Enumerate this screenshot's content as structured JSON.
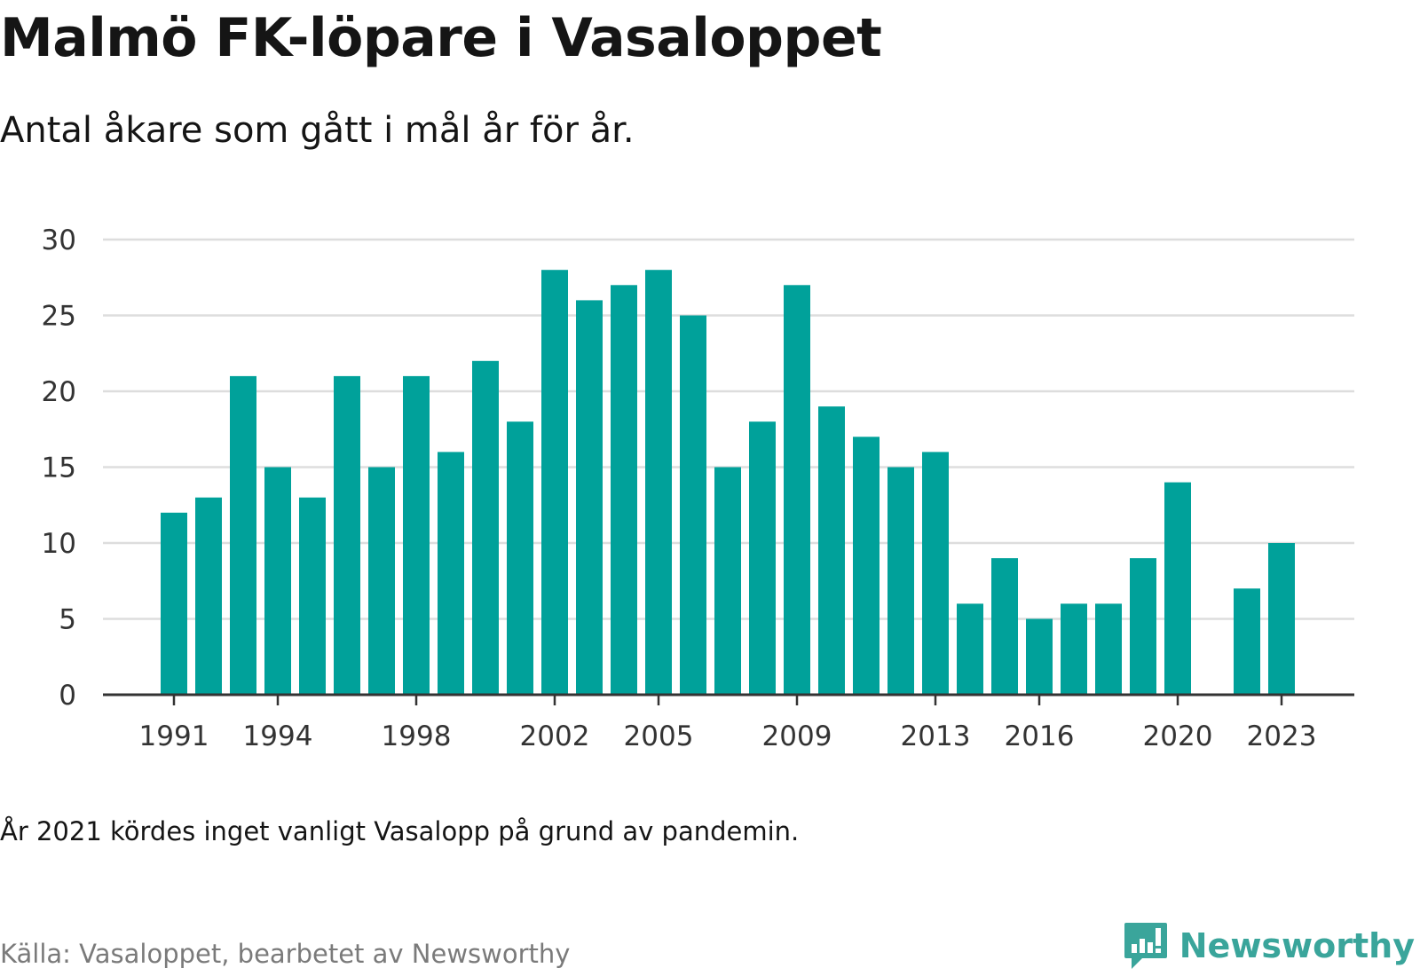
{
  "header": {
    "title": "Malmö FK-löpare i Vasaloppet",
    "subtitle": "Antal åkare som gått i mål år för år."
  },
  "footer": {
    "note": "År 2021 kördes inget vanligt Vasalopp på grund av pandemin.",
    "source": "Källa: Vasaloppet, bearbetet av Newsworthy",
    "brand": "Newsworthy"
  },
  "colors": {
    "bar": "#00a19a",
    "grid": "#dddddd",
    "axis": "#333333",
    "brand": "#3aa59b"
  },
  "chart_data": {
    "type": "bar",
    "title": "Malmö FK-löpare i Vasaloppet",
    "subtitle": "Antal åkare som gått i mål år för år.",
    "xlabel": "",
    "ylabel": "",
    "categories": [
      1991,
      1992,
      1993,
      1994,
      1995,
      1996,
      1997,
      1998,
      1999,
      2000,
      2001,
      2002,
      2003,
      2004,
      2005,
      2006,
      2007,
      2008,
      2009,
      2010,
      2011,
      2012,
      2013,
      2014,
      2015,
      2016,
      2017,
      2018,
      2019,
      2020,
      2021,
      2022,
      2023
    ],
    "values": [
      12,
      13,
      21,
      15,
      13,
      21,
      15,
      21,
      16,
      22,
      18,
      28,
      26,
      27,
      28,
      25,
      15,
      18,
      27,
      19,
      17,
      15,
      16,
      6,
      9,
      5,
      6,
      6,
      9,
      14,
      null,
      7,
      10
    ],
    "x_tick_labels": [
      "1991",
      "1994",
      "1998",
      "2002",
      "2005",
      "2009",
      "2013",
      "2016",
      "2020",
      "2023"
    ],
    "y_ticks": [
      0,
      5,
      10,
      15,
      20,
      25,
      30
    ],
    "ylim": [
      0,
      30
    ],
    "grid": true,
    "legend": "none"
  }
}
